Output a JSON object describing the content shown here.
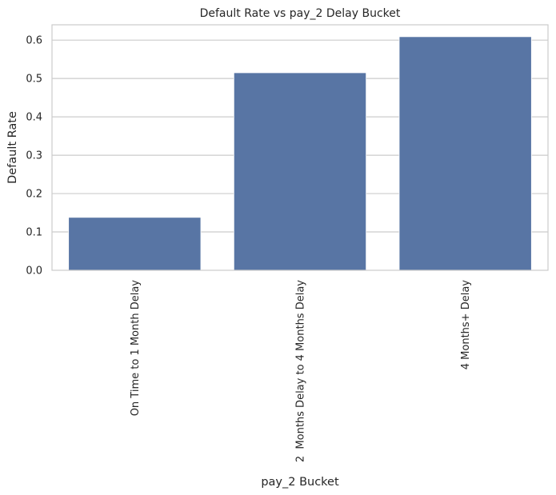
{
  "chart_data": {
    "type": "bar",
    "title": "Default Rate vs pay_2 Delay Bucket",
    "xlabel": "pay_2 Bucket",
    "ylabel": "Default Rate",
    "categories": [
      "On Time to 1 Month Delay",
      "2  Months Delay to 4 Months Delay",
      "4 Months+ Delay"
    ],
    "values": [
      0.138,
      0.515,
      0.609
    ],
    "ylim": [
      0,
      0.64
    ],
    "yticks": [
      "0.0",
      "0.1",
      "0.2",
      "0.3",
      "0.4",
      "0.5",
      "0.6"
    ],
    "grid": true,
    "bar_color": "#5875a4",
    "grid_color": "#cccccc"
  }
}
